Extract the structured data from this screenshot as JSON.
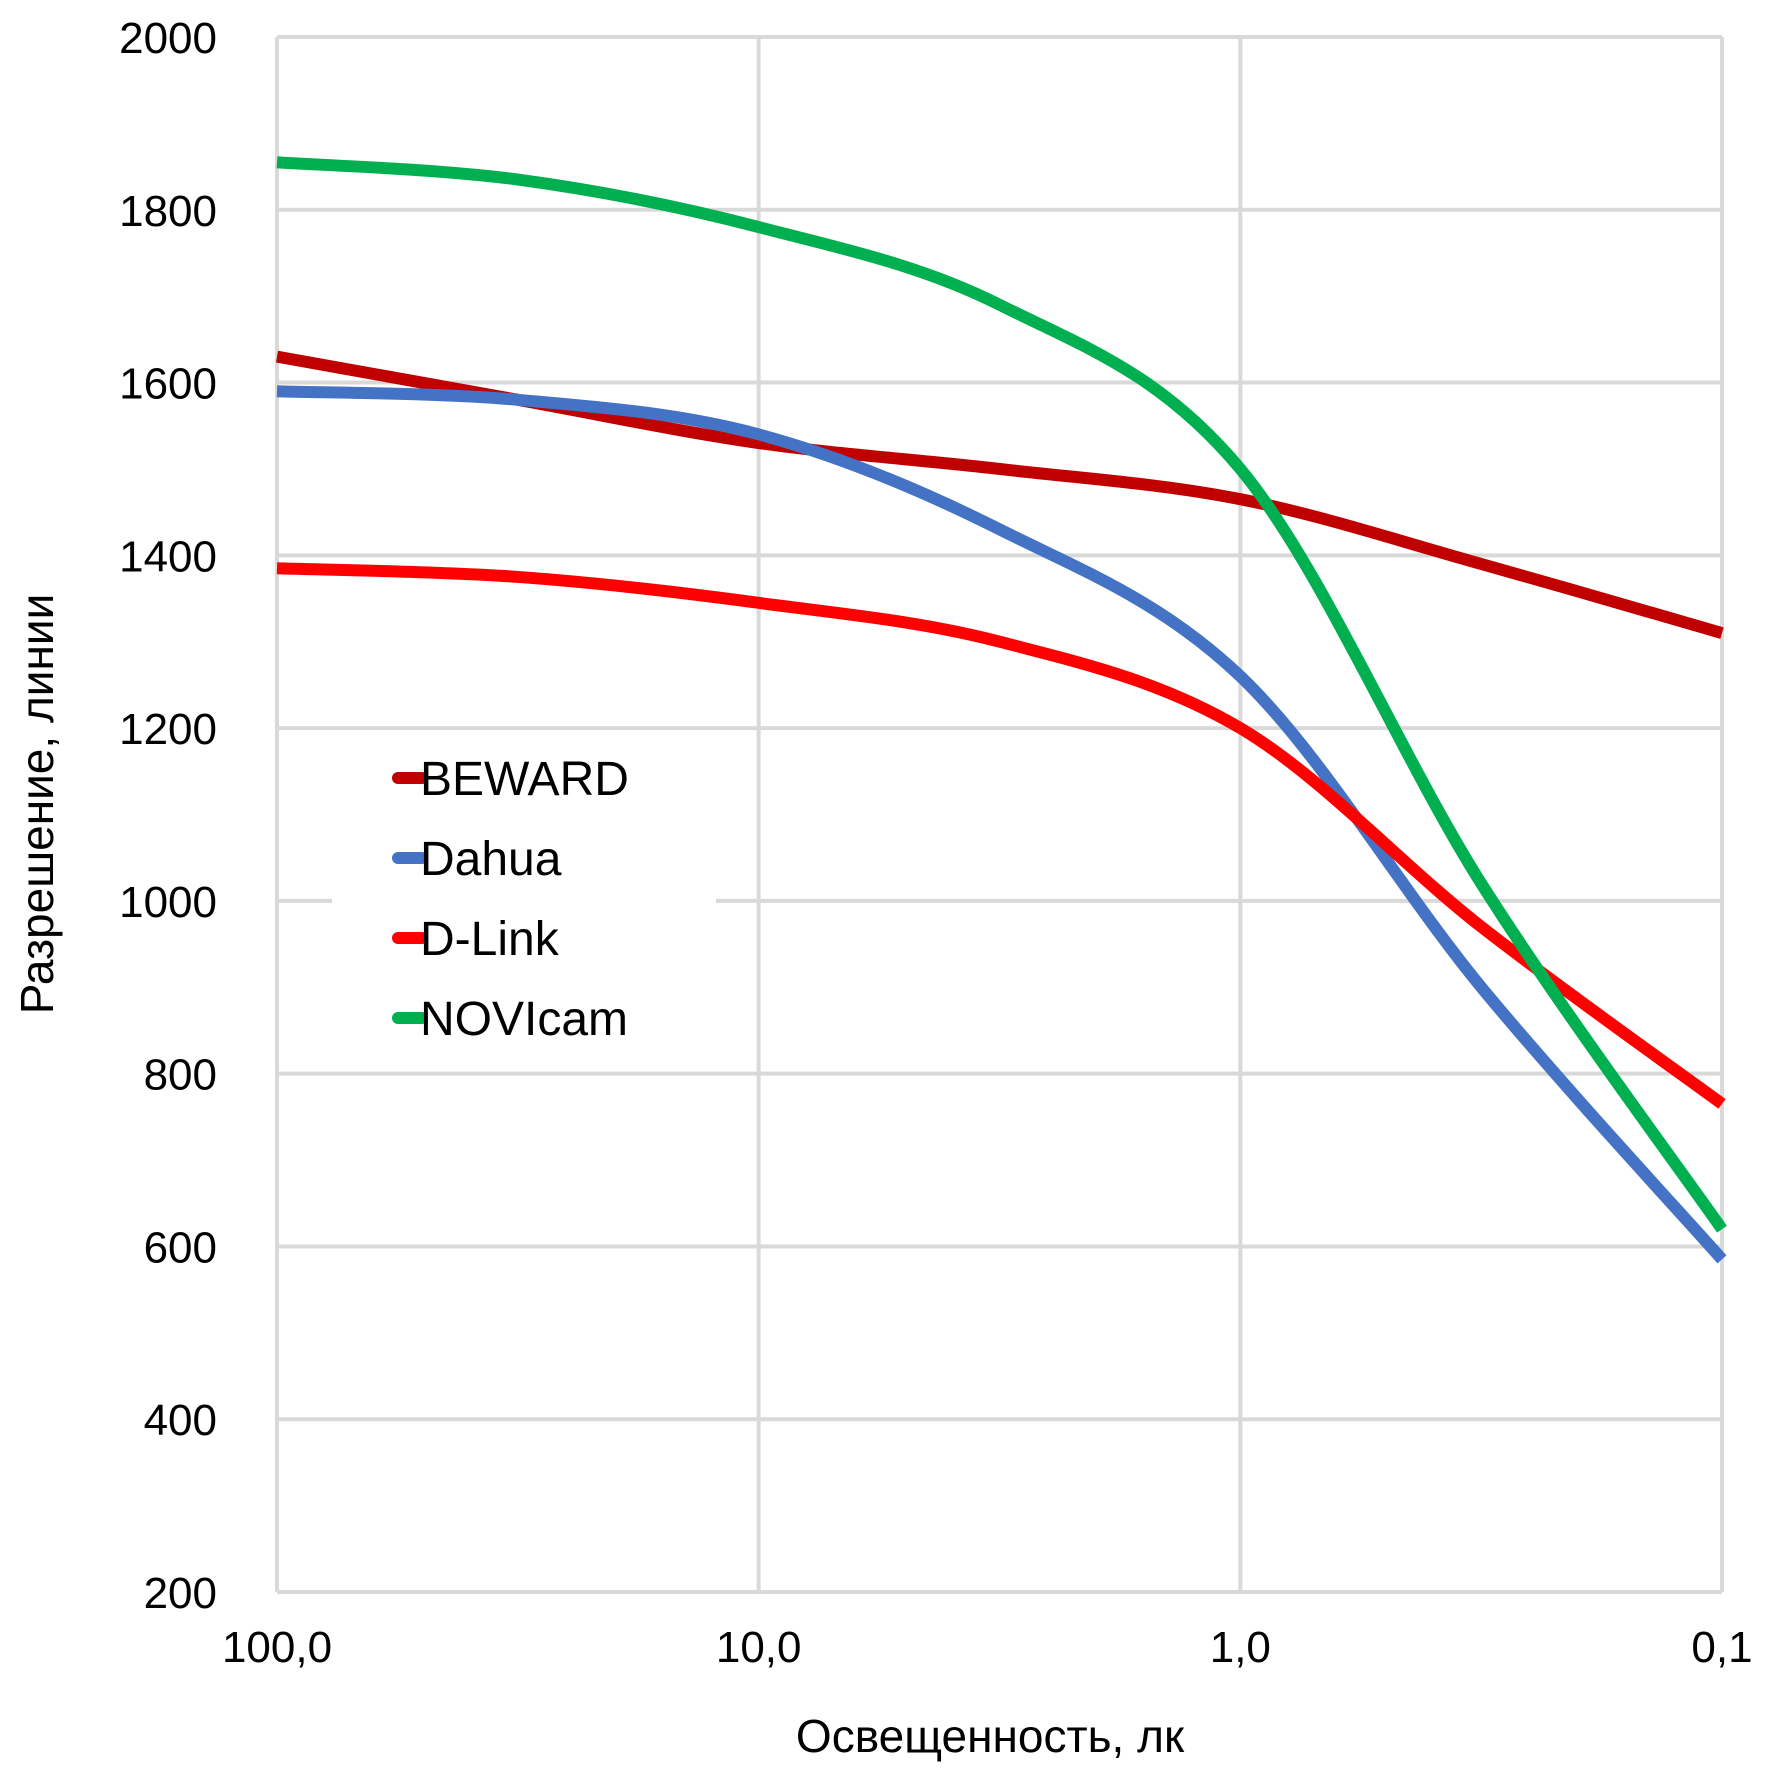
{
  "chart_data": {
    "type": "line",
    "x_scale": "log-reversed",
    "xlim": [
      100,
      0.1
    ],
    "ylim": [
      200,
      2000
    ],
    "y_ticks": [
      200,
      400,
      600,
      800,
      1000,
      1200,
      1400,
      1600,
      1800,
      2000
    ],
    "y_tick_labels": [
      "200",
      "400",
      "600",
      "800",
      "1000",
      "1200",
      "1400",
      "1600",
      "1800",
      "2000"
    ],
    "x_ticks": [
      100,
      10,
      1,
      0.1
    ],
    "x_tick_labels": [
      "100,0",
      "10,0",
      "1,0",
      "0,1"
    ],
    "xlabel": "Освещенность, лк",
    "ylabel": "Разрешение, линии",
    "grid": true,
    "legend": "middle-left",
    "series": [
      {
        "name": "BEWARD",
        "color": "#C00000",
        "x": [
          100,
          31.6,
          10,
          3.16,
          1,
          0.316,
          0.1
        ],
        "y": [
          1630,
          1580,
          1530,
          1500,
          1465,
          1390,
          1310
        ]
      },
      {
        "name": "Dahua",
        "color": "#4472C4",
        "x": [
          100,
          31.6,
          10,
          3.16,
          1,
          0.316,
          0.1
        ],
        "y": [
          1590,
          1580,
          1540,
          1430,
          1260,
          900,
          585
        ]
      },
      {
        "name": "D-Link",
        "color": "#FF0000",
        "x": [
          100,
          31.6,
          10,
          3.16,
          1,
          0.316,
          0.1
        ],
        "y": [
          1385,
          1375,
          1345,
          1300,
          1200,
          970,
          765
        ]
      },
      {
        "name": "NOVIcam",
        "color": "#00B050",
        "x": [
          100,
          31.6,
          10,
          3.16,
          1,
          0.316,
          0.1
        ],
        "y": [
          1855,
          1835,
          1780,
          1690,
          1500,
          1020,
          620
        ]
      }
    ]
  }
}
